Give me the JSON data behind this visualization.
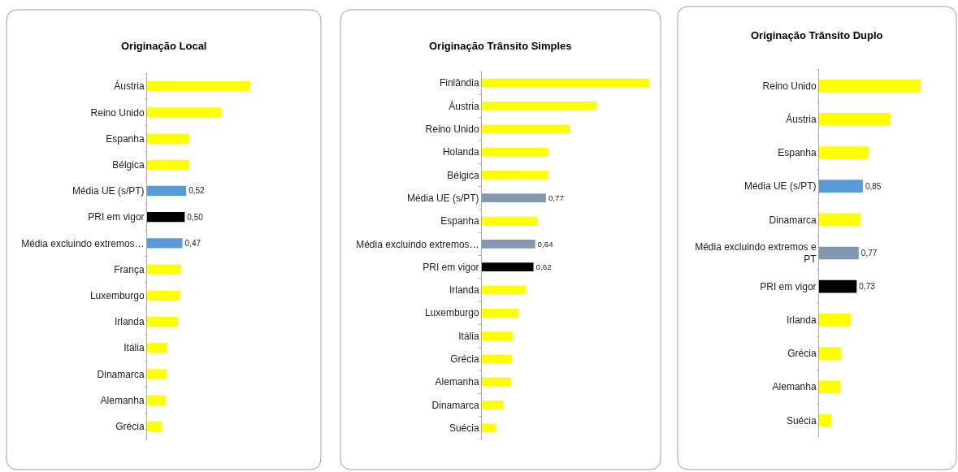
{
  "chart_data": [
    {
      "type": "bar",
      "title": "Originação Local",
      "orientation": "horizontal",
      "tick_labels": "y",
      "categories": [
        "Áustria",
        "Reino Unido",
        "Espanha",
        "Bélgica",
        "Média UE (s/PT)",
        "PRI em vigor",
        "Média excluindo extremos…",
        "França",
        "Luxemburgo",
        "Irlanda",
        "Itália",
        "Dinamarca",
        "Alemanha",
        "Grécia"
      ],
      "values": [
        1.37,
        0.99,
        0.56,
        0.56,
        0.52,
        0.5,
        0.47,
        0.45,
        0.44,
        0.41,
        0.27,
        0.26,
        0.25,
        0.2
      ],
      "colors": [
        "#ffff00",
        "#ffff00",
        "#ffff00",
        "#ffff00",
        "#5b9bd5",
        "#000000",
        "#5b9bd5",
        "#ffff00",
        "#ffff00",
        "#ffff00",
        "#ffff00",
        "#ffff00",
        "#ffff00",
        "#ffff00"
      ],
      "value_labels": [
        null,
        null,
        null,
        null,
        "0,52",
        "0,50",
        "0,47",
        null,
        null,
        null,
        null,
        null,
        null,
        null
      ]
    },
    {
      "type": "bar",
      "title": "Originação Trânsito Simples",
      "orientation": "horizontal",
      "tick_labels": "y",
      "categories": [
        "Finlândia",
        "Áustria",
        "Reino Unido",
        "Holanda",
        "Bélgica",
        "Média UE (s/PT)",
        "Espanha",
        "Média excluindo extremos…",
        "PRI em vigor",
        "Irlanda",
        "Luxemburgo",
        "Itália",
        "Grécia",
        "Alemanha",
        "Dinamarca",
        "Suécia"
      ],
      "values": [
        2.01,
        1.38,
        1.06,
        0.8,
        0.8,
        0.77,
        0.67,
        0.64,
        0.62,
        0.53,
        0.44,
        0.37,
        0.36,
        0.35,
        0.26,
        0.17
      ],
      "colors": [
        "#ffff00",
        "#ffff00",
        "#ffff00",
        "#ffff00",
        "#ffff00",
        "#8497b0",
        "#ffff00",
        "#8497b0",
        "#000000",
        "#ffff00",
        "#ffff00",
        "#ffff00",
        "#ffff00",
        "#ffff00",
        "#ffff00",
        "#ffff00"
      ],
      "value_labels": [
        null,
        null,
        null,
        null,
        null,
        "0,77",
        null,
        "0,64",
        "0,62",
        null,
        null,
        null,
        null,
        null,
        null,
        null
      ]
    },
    {
      "type": "bar",
      "title": "Originação Trânsito Duplo",
      "orientation": "horizontal",
      "tick_labels": "y",
      "categories": [
        "Reino Unido",
        "Áustria",
        "Espanha",
        "Média UE (s/PT)",
        "Dinamarca",
        "Média excluindo extremos e PT",
        "PRI em vigor",
        "Irlanda",
        "Grécia",
        "Alemanha",
        "Suécia"
      ],
      "values": [
        1.97,
        1.39,
        0.96,
        0.85,
        0.81,
        0.77,
        0.73,
        0.62,
        0.43,
        0.42,
        0.24
      ],
      "colors": [
        "#ffff00",
        "#ffff00",
        "#ffff00",
        "#5b9bd5",
        "#ffff00",
        "#8497b0",
        "#000000",
        "#ffff00",
        "#ffff00",
        "#ffff00",
        "#ffff00"
      ],
      "value_labels": [
        null,
        null,
        null,
        "0,85",
        null,
        "0,77",
        "0,73",
        null,
        null,
        null,
        null
      ]
    }
  ]
}
